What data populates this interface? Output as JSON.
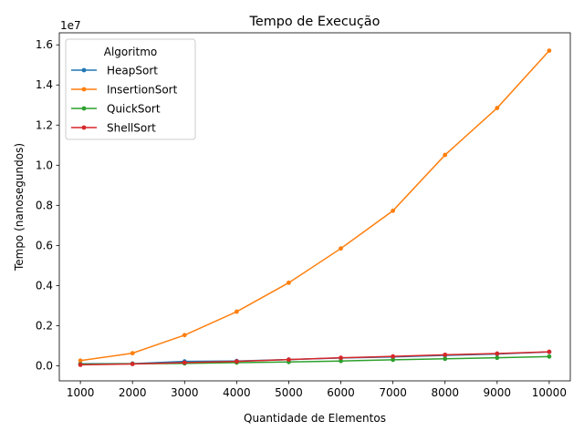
{
  "chart_data": {
    "type": "line",
    "title": "Tempo de Execução",
    "xlabel": "Quantidade de Elementos",
    "ylabel": "Tempo (nanosegundos)",
    "offset_text": "1e7",
    "x": [
      1000,
      2000,
      3000,
      4000,
      5000,
      6000,
      7000,
      8000,
      9000,
      10000
    ],
    "xlim": [
      595,
      10405
    ],
    "ylim": [
      -0.075,
      1.66
    ],
    "y_unit_multiplier": 10000000,
    "y_ticks": [
      0.0,
      0.2,
      0.4,
      0.6,
      0.8,
      1.0,
      1.2,
      1.4,
      1.6
    ],
    "y_tick_labels": [
      "0.0",
      "0.2",
      "0.4",
      "0.6",
      "0.8",
      "1.0",
      "1.2",
      "1.4",
      "1.6"
    ],
    "x_tick_labels": [
      "1000",
      "2000",
      "3000",
      "4000",
      "5000",
      "6000",
      "7000",
      "8000",
      "9000",
      "10000"
    ],
    "grid": false,
    "legend": {
      "title": "Algoritmo",
      "placement": "top-left"
    },
    "series": [
      {
        "name": "HeapSort",
        "color": "#1f77b4",
        "values": [
          0.01,
          0.011,
          0.022,
          0.024,
          0.031,
          0.039,
          0.044,
          0.052,
          0.059,
          0.069
        ]
      },
      {
        "name": "InsertionSort",
        "color": "#ff7f0e",
        "values": [
          0.026,
          0.063,
          0.153,
          0.27,
          0.414,
          0.585,
          0.773,
          1.051,
          1.285,
          1.571
        ]
      },
      {
        "name": "QuickSort",
        "color": "#2ca02c",
        "values": [
          0.008,
          0.01,
          0.012,
          0.016,
          0.019,
          0.024,
          0.03,
          0.035,
          0.04,
          0.046
        ]
      },
      {
        "name": "ShellSort",
        "color": "#d62728",
        "values": [
          0.005,
          0.009,
          0.016,
          0.022,
          0.031,
          0.04,
          0.047,
          0.055,
          0.061,
          0.07
        ]
      }
    ]
  }
}
